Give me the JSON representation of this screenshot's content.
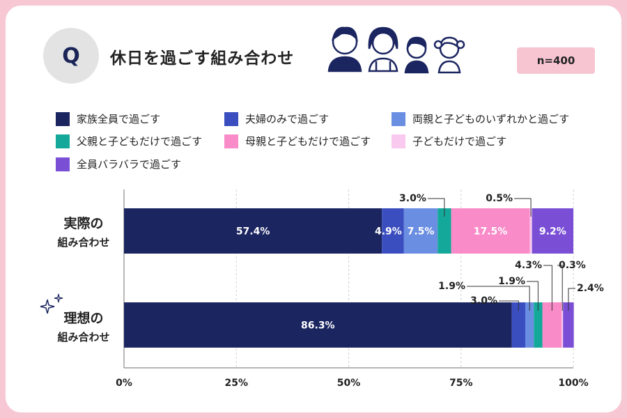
{
  "question": {
    "badge": "Q",
    "title": "休日を過ごす組み合わせ",
    "n": "n=400"
  },
  "colors": [
    "#1b2560",
    "#3a4ec0",
    "#6a8ee2",
    "#14a89a",
    "#f98bc8",
    "#f9c9ef",
    "#7a4fd6"
  ],
  "legend": [
    "家族全員で過ごす",
    "夫婦のみで過ごす",
    "両親と子どものいずれかと過ごす",
    "父親と子どもだけで過ごす",
    "母親と子どもだけで過ごす",
    "子どもだけで過ごす",
    "全員バラバラで過ごす"
  ],
  "rows": [
    {
      "label1": "実際の",
      "label2": "組み合わせ"
    },
    {
      "label1": "理想の",
      "label2": "組み合わせ"
    }
  ],
  "chart_data": {
    "type": "bar",
    "orientation": "horizontal",
    "stacked": true,
    "categories": [
      "実際の組み合わせ",
      "理想の組み合わせ"
    ],
    "series": [
      {
        "name": "家族全員で過ごす",
        "values": [
          57.4,
          86.3
        ]
      },
      {
        "name": "夫婦のみで過ごす",
        "values": [
          4.9,
          3.0
        ]
      },
      {
        "name": "両親と子どものいずれかと過ごす",
        "values": [
          7.5,
          1.9
        ]
      },
      {
        "name": "父親と子どもだけで過ごす",
        "values": [
          3.0,
          1.9
        ]
      },
      {
        "name": "母親と子どもだけで過ごす",
        "values": [
          17.5,
          4.3
        ]
      },
      {
        "name": "子どもだけで過ごす",
        "values": [
          0.5,
          0.3
        ]
      },
      {
        "name": "全員バラバラで過ごす",
        "values": [
          9.2,
          2.4
        ]
      }
    ],
    "xlim": [
      0,
      100
    ],
    "xticks": [
      "0%",
      "25%",
      "50%",
      "75%",
      "100%"
    ],
    "value_labels": [
      [
        "57.4%",
        "4.9%",
        "7.5%",
        "3.0%",
        "17.5%",
        "0.5%",
        "9.2%"
      ],
      [
        "86.3%",
        "3.0%",
        "1.9%",
        "1.9%",
        "4.3%",
        "0.3%",
        "2.4%"
      ]
    ],
    "grid": true
  }
}
